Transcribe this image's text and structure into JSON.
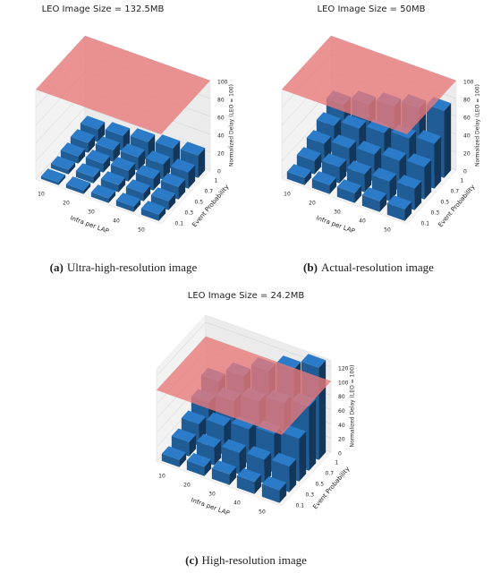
{
  "chart_data": [
    {
      "type": "bar3d",
      "title": "LEO Image Size = 132.5MB",
      "caption_label": "(a)",
      "caption": "Ultra-high-resolution image",
      "xlabel": "Infra per LAP",
      "ylabel": "Event Probability",
      "zlabel": "Normalized Delay (LEO = 100)",
      "x_categories": [
        10,
        20,
        30,
        40,
        50
      ],
      "y_categories": [
        0.1,
        0.3,
        0.5,
        0.7,
        1.0
      ],
      "values": [
        [
          3,
          4,
          5,
          6,
          7
        ],
        [
          5,
          7,
          8,
          9,
          10
        ],
        [
          8,
          10,
          12,
          13,
          14
        ],
        [
          11,
          13,
          15,
          17,
          18
        ],
        [
          14,
          17,
          20,
          23,
          25
        ]
      ],
      "reference_value": 100,
      "zlim": [
        0,
        100
      ],
      "zticks": [
        0,
        20,
        40,
        60,
        80,
        100
      ],
      "color": "#2b7bc8",
      "plane_color": "#e8797b"
    },
    {
      "type": "bar3d",
      "title": "LEO Image Size = 50MB",
      "caption_label": "(b)",
      "caption": "Actual-resolution image",
      "xlabel": "Infra per LAP",
      "ylabel": "Event Probability",
      "zlabel": "Normalized Delay (LEO = 100)",
      "x_categories": [
        10,
        20,
        30,
        40,
        50
      ],
      "y_categories": [
        0.1,
        0.3,
        0.5,
        0.7,
        1.0
      ],
      "values": [
        [
          8,
          10,
          11,
          12,
          13
        ],
        [
          15,
          18,
          20,
          22,
          24
        ],
        [
          22,
          27,
          30,
          33,
          36
        ],
        [
          30,
          37,
          42,
          46,
          50
        ],
        [
          42,
          52,
          60,
          68,
          75
        ]
      ],
      "reference_value": 100,
      "zlim": [
        0,
        100
      ],
      "zticks": [
        0,
        20,
        40,
        60,
        80,
        100
      ],
      "color": "#2b7bc8",
      "plane_color": "#e8797b"
    },
    {
      "type": "bar3d",
      "title": "LEO Image Size = 24.2MB",
      "caption_label": "(c)",
      "caption": "High-resolution image",
      "xlabel": "Infra per LAP",
      "ylabel": "Event Probability",
      "zlabel": "Normalized Delay (LEO = 100)",
      "x_categories": [
        10,
        20,
        30,
        40,
        50
      ],
      "y_categories": [
        0.1,
        0.3,
        0.5,
        0.7,
        1.0
      ],
      "values": [
        [
          10,
          13,
          15,
          17,
          18
        ],
        [
          20,
          25,
          30,
          33,
          36
        ],
        [
          30,
          40,
          48,
          54,
          60
        ],
        [
          45,
          60,
          72,
          82,
          90
        ],
        [
          60,
          80,
          100,
          115,
          130
        ]
      ],
      "reference_value": 100,
      "zlim": [
        0,
        130
      ],
      "zticks": [
        0,
        20,
        40,
        60,
        80,
        100,
        120
      ],
      "color": "#2b7bc8",
      "plane_color": "#e8797b"
    }
  ]
}
